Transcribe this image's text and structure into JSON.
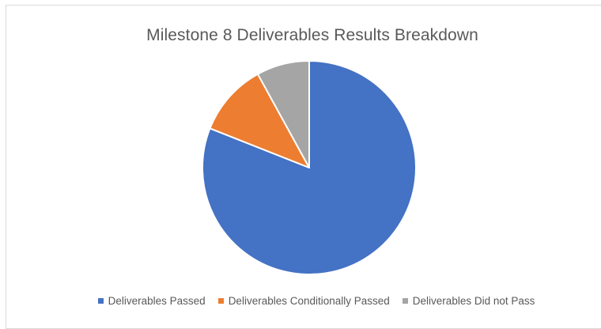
{
  "chart_data": {
    "type": "pie",
    "title": "Milestone 8 Deliverables Results Breakdown",
    "categories": [
      "Deliverables Passed",
      "Deliverables Conditionally Passed",
      "Deliverables Did not Pass"
    ],
    "values": [
      81,
      11,
      8
    ],
    "colors": [
      "#4472c4",
      "#ed7d31",
      "#a5a5a5"
    ],
    "legend_position": "bottom"
  }
}
